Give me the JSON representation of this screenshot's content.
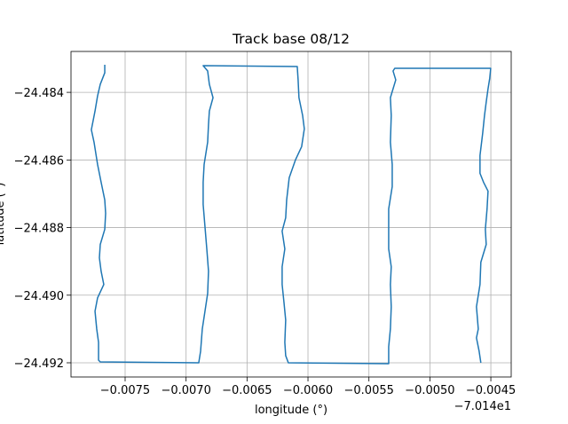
{
  "chart_data": {
    "type": "line",
    "title": "Track base 08/12",
    "x_label": "longitude (°)",
    "y_label": "latitude (°)",
    "x_offset_label": "−7.014e1",
    "color": "#1f77b4",
    "grid": true,
    "xlim": [
      -0.007944,
      -0.004333
    ],
    "ylim": [
      -24.49242,
      -24.48279
    ],
    "xticks": [
      {
        "value": -0.0075,
        "label": "−0.0075"
      },
      {
        "value": -0.007,
        "label": "−0.0070"
      },
      {
        "value": -0.0065,
        "label": "−0.0065"
      },
      {
        "value": -0.006,
        "label": "−0.0060"
      },
      {
        "value": -0.0055,
        "label": "−0.0055"
      },
      {
        "value": -0.005,
        "label": "−0.0050"
      },
      {
        "value": -0.0045,
        "label": "−0.0045"
      }
    ],
    "yticks": [
      {
        "value": -24.484,
        "label": "−24.484"
      },
      {
        "value": -24.486,
        "label": "−24.486"
      },
      {
        "value": -24.488,
        "label": "−24.488"
      },
      {
        "value": -24.49,
        "label": "−24.490"
      },
      {
        "value": -24.492,
        "label": "−24.492"
      }
    ],
    "x": [
      -0.007667,
      -0.007667,
      -0.007704,
      -0.007726,
      -0.007747,
      -0.007777,
      -0.007755,
      -0.007726,
      -0.007697,
      -0.007667,
      -0.00766,
      -0.007667,
      -0.007704,
      -0.007711,
      -0.007697,
      -0.007675,
      -0.007726,
      -0.007747,
      -0.007733,
      -0.007718,
      -0.007718,
      -0.007704,
      -0.006896,
      -0.006881,
      -0.006867,
      -0.006845,
      -0.006823,
      -0.006816,
      -0.00683,
      -0.006845,
      -0.00686,
      -0.00686,
      -0.006852,
      -0.006823,
      -0.006816,
      -0.006809,
      -0.006779,
      -0.006809,
      -0.006823,
      -0.00686,
      -0.006088,
      -0.006081,
      -0.006074,
      -0.006044,
      -0.00603,
      -0.006052,
      -0.006103,
      -0.006154,
      -0.006175,
      -0.006183,
      -0.006212,
      -0.00619,
      -0.006212,
      -0.006212,
      -0.006197,
      -0.006183,
      -0.00619,
      -0.006183,
      -0.006161,
      -0.005338,
      -0.005338,
      -0.005324,
      -0.005317,
      -0.005324,
      -0.005317,
      -0.005338,
      -0.005338,
      -0.005338,
      -0.005309,
      -0.005309,
      -0.005324,
      -0.005317,
      -0.005324,
      -0.00528,
      -0.005302,
      -0.005288,
      -0.004501,
      -0.004509,
      -0.004523,
      -0.004538,
      -0.004552,
      -0.004567,
      -0.004589,
      -0.004589,
      -0.00456,
      -0.004523,
      -0.004531,
      -0.004545,
      -0.004538,
      -0.004582,
      -0.004589,
      -0.004618,
      -0.004603,
      -0.004618,
      -0.004596,
      -0.004582
    ],
    "values": [
      -24.483184,
      -24.483421,
      -24.483763,
      -24.484105,
      -24.484553,
      -24.485105,
      -24.485474,
      -24.486132,
      -24.486658,
      -24.487184,
      -24.487579,
      -24.488053,
      -24.4885,
      -24.488895,
      -24.489289,
      -24.489684,
      -24.490079,
      -24.490474,
      -24.491,
      -24.491395,
      -24.491921,
      -24.491974,
      -24.492,
      -24.491658,
      -24.491,
      -24.490474,
      -24.489947,
      -24.489289,
      -24.488632,
      -24.487974,
      -24.487316,
      -24.486658,
      -24.486132,
      -24.485474,
      -24.484947,
      -24.484553,
      -24.484158,
      -24.483763,
      -24.483368,
      -24.483211,
      -24.483237,
      -24.483632,
      -24.484158,
      -24.484684,
      -24.485079,
      -24.485605,
      -24.486,
      -24.486526,
      -24.487184,
      -24.487711,
      -24.488105,
      -24.488632,
      -24.489158,
      -24.489684,
      -24.490211,
      -24.490737,
      -24.491395,
      -24.491789,
      -24.492,
      -24.492026,
      -24.491526,
      -24.491,
      -24.490342,
      -24.489684,
      -24.489158,
      -24.488632,
      -24.488105,
      -24.487447,
      -24.486789,
      -24.486132,
      -24.485474,
      -24.484684,
      -24.484158,
      -24.483632,
      -24.483368,
      -24.483289,
      -24.483289,
      -24.483579,
      -24.483895,
      -24.484289,
      -24.484684,
      -24.485211,
      -24.485868,
      -24.486395,
      -24.486658,
      -24.486921,
      -24.487447,
      -24.488053,
      -24.4885,
      -24.489026,
      -24.489684,
      -24.490342,
      -24.491,
      -24.491263,
      -24.491658,
      -24.492
    ]
  }
}
